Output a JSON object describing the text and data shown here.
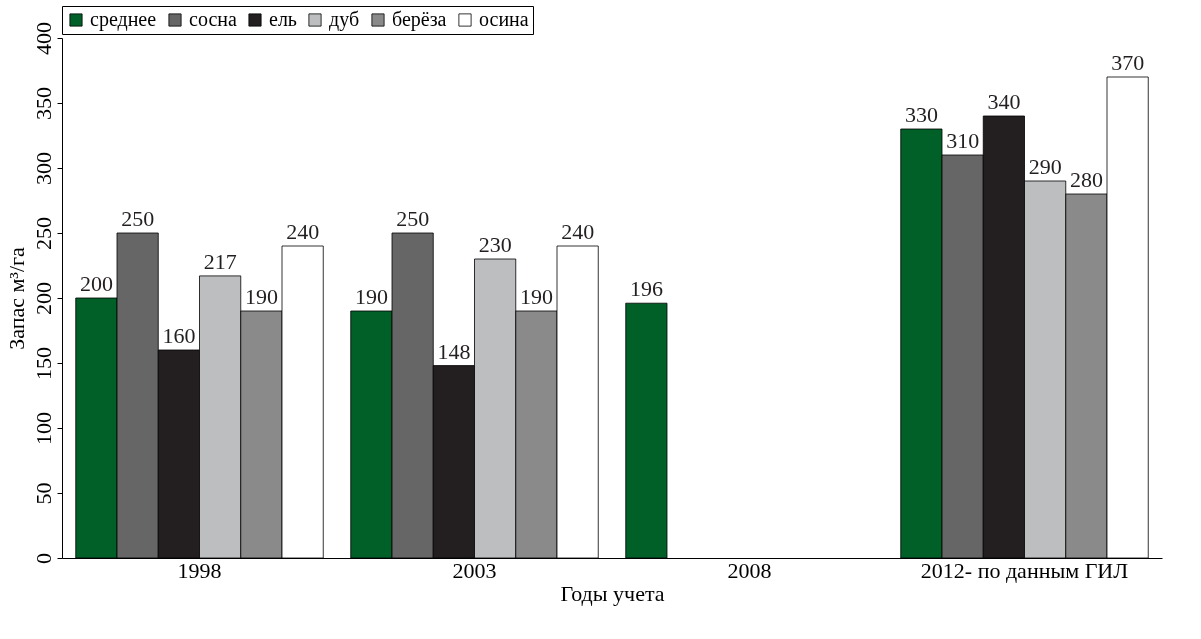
{
  "chart_data": {
    "type": "bar",
    "xlabel": "Годы учета",
    "ylabel": "Запас м³/га",
    "categories": [
      "1998",
      "2003",
      "2008",
      "2012- по данным ГИЛ"
    ],
    "series": [
      {
        "name": "среднее",
        "color": "#006028",
        "values": [
          200,
          190,
          196,
          330
        ]
      },
      {
        "name": "сосна",
        "color": "#666666",
        "values": [
          250,
          250,
          null,
          310
        ]
      },
      {
        "name": "ель",
        "color": "#231f20",
        "values": [
          160,
          148,
          null,
          340
        ]
      },
      {
        "name": "дуб",
        "color": "#bcbec0",
        "values": [
          217,
          230,
          null,
          290
        ]
      },
      {
        "name": "берёза",
        "color": "#8a8a8a",
        "values": [
          190,
          190,
          null,
          280
        ]
      },
      {
        "name": "осина",
        "color": "#ffffff",
        "values": [
          240,
          240,
          null,
          370
        ]
      }
    ],
    "ylim": [
      0,
      400
    ],
    "yticks": [
      0,
      50,
      100,
      150,
      200,
      250,
      300,
      350,
      400
    ],
    "data_labels": true,
    "legend": "top",
    "grid": false
  }
}
